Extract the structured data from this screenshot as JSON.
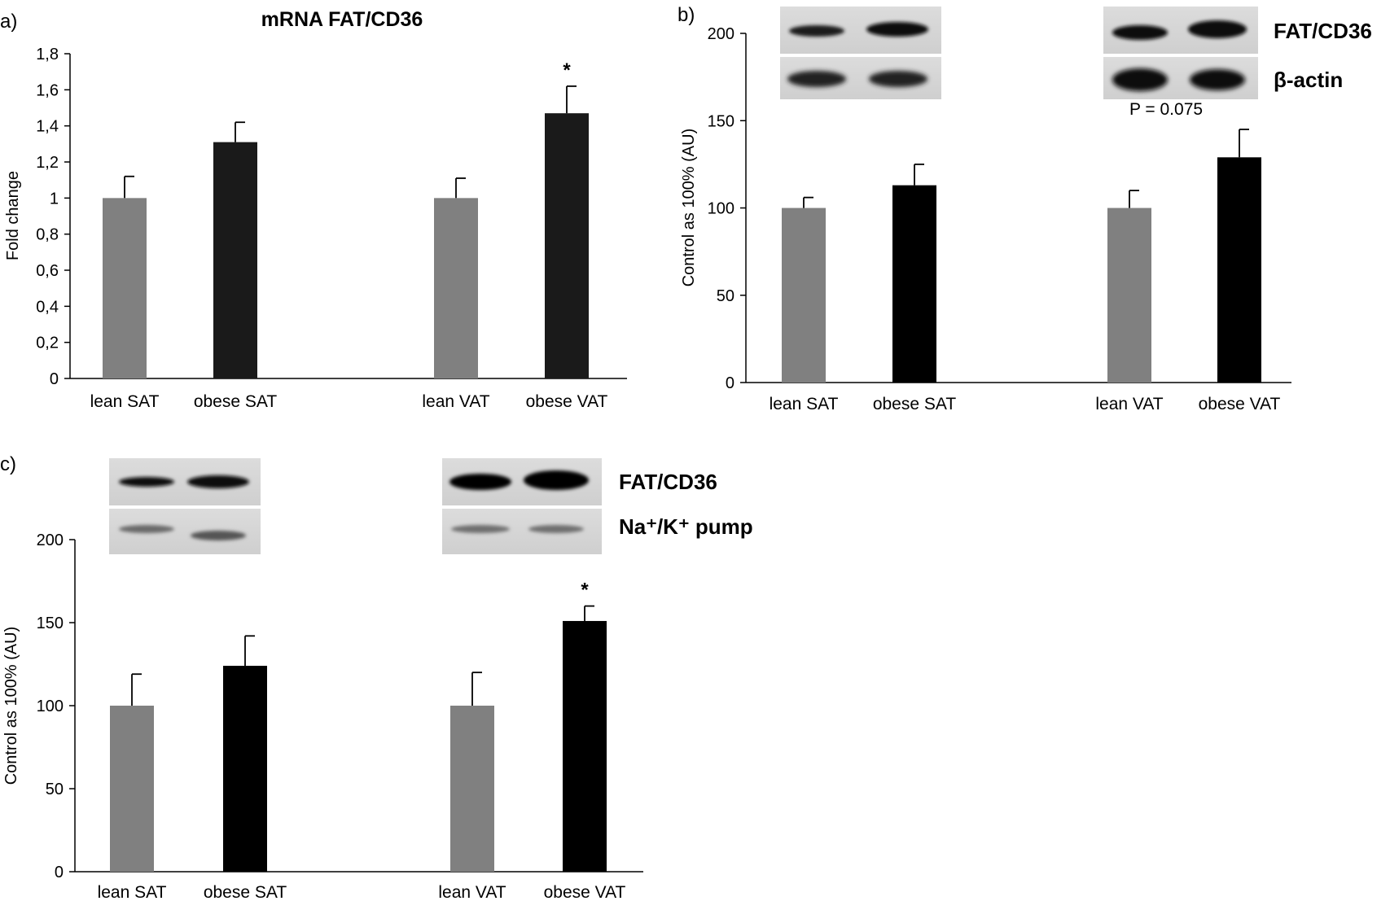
{
  "panels": {
    "a": {
      "letter": "a)"
    },
    "b": {
      "letter": "b)",
      "blot_labels": [
        "FAT/CD36",
        "β-actin"
      ]
    },
    "c": {
      "letter": "c)",
      "blot_labels": [
        "FAT/CD36",
        "Na⁺/K⁺ pump"
      ]
    }
  },
  "colors": {
    "lean": "#808080",
    "obese_a": "#1a1a1a",
    "obese": "#000000",
    "axis": "#000000"
  },
  "chart_data": [
    {
      "id": "a",
      "type": "bar",
      "title": "mRNA FAT/CD36",
      "ylabel": "Fold change",
      "xlabel": "",
      "ylim": [
        0,
        1.8
      ],
      "yticks": [
        0,
        0.2,
        0.4,
        0.6,
        0.8,
        1,
        1.2,
        1.4,
        1.6,
        1.8
      ],
      "ytick_labels": [
        "0",
        "0,2",
        "0,4",
        "0,6",
        "0,8",
        "1",
        "1,2",
        "1,4",
        "1,6",
        "1,8"
      ],
      "categories": [
        "lean SAT",
        "obese SAT",
        "lean VAT",
        "obese VAT"
      ],
      "values": [
        1.0,
        1.31,
        1.0,
        1.47
      ],
      "errors": [
        0.12,
        0.11,
        0.11,
        0.15
      ],
      "annotations": [
        {
          "category": "obese VAT",
          "text": "*"
        }
      ],
      "grid": false
    },
    {
      "id": "b",
      "type": "bar",
      "title": "",
      "ylabel": "Control  as  100% (AU)",
      "xlabel": "",
      "ylim": [
        0,
        200
      ],
      "yticks": [
        0,
        50,
        100,
        150,
        200
      ],
      "ytick_labels": [
        "0",
        "50",
        "100",
        "150",
        "200"
      ],
      "categories": [
        "lean SAT",
        "obese SAT",
        "lean VAT",
        "obese VAT"
      ],
      "values": [
        100,
        113,
        100,
        129
      ],
      "errors": [
        6,
        12,
        10,
        16
      ],
      "annotations": [
        {
          "category": "obese VAT",
          "text": "P = 0.075"
        }
      ],
      "grid": false
    },
    {
      "id": "c",
      "type": "bar",
      "title": "",
      "ylabel": "Control as 100% (AU)",
      "xlabel": "",
      "ylim": [
        0,
        200
      ],
      "yticks": [
        0,
        50,
        100,
        150,
        200
      ],
      "ytick_labels": [
        "0",
        "50",
        "100",
        "150",
        "200"
      ],
      "categories": [
        "lean SAT",
        "obese SAT",
        "lean VAT",
        "obese VAT"
      ],
      "values": [
        100,
        124,
        100,
        151
      ],
      "errors": [
        19,
        18,
        20,
        9
      ],
      "annotations": [
        {
          "category": "obese VAT",
          "text": "*"
        }
      ],
      "grid": false
    }
  ]
}
